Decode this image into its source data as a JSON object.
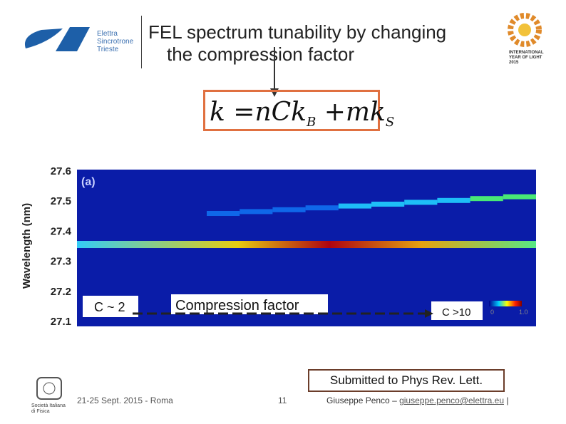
{
  "logo": {
    "line1": "Elettra",
    "line2": "Sincrotrone",
    "line3": "Trieste"
  },
  "header": {
    "title_line1": "FEL spectrum tunability by changing",
    "title_line2": "the compression factor"
  },
  "iyl": {
    "line1": "INTERNATIONAL",
    "line2": "YEAR OF LIGHT",
    "line3": "2015"
  },
  "formula": {
    "lhs": "k",
    "eq": "=",
    "term1": "nCk",
    "sub1": "B",
    "plus": "+",
    "term2": "mk",
    "sub2": "S"
  },
  "figure": {
    "panel": "(a)",
    "y_label": "Wavelength (nm)",
    "y_ticks": [
      "27.6",
      "27.5",
      "27.4",
      "27.3",
      "27.2",
      "27.1"
    ],
    "left_note": "C ~ 2",
    "center_note": "Compression factor",
    "right_note": "C >10",
    "cbar_min": "0",
    "cbar_max": "1.0"
  },
  "note": "Submitted to Phys Rev. Lett.",
  "footer": {
    "society1": "Società Italiana",
    "society2": "di Fisica",
    "date": "21-25 Sept. 2015 - Roma",
    "page": "11",
    "author": "Giuseppe Penco – ",
    "email": "giuseppe.penco@elettra.eu",
    "sep": "|"
  }
}
